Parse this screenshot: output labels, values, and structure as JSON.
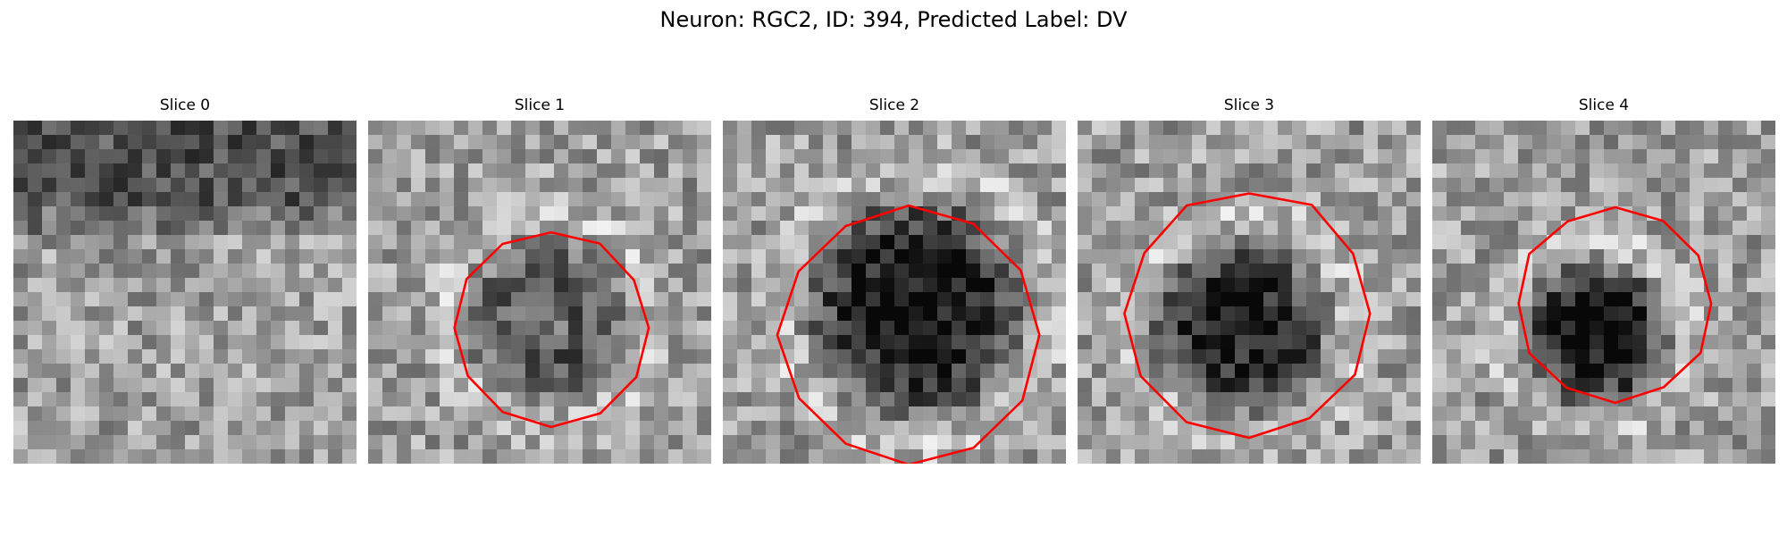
{
  "figure": {
    "title": "Neuron: RGC2, ID: 394, Predicted Label: DV"
  },
  "panels": [
    {
      "title": "Slice 0",
      "seed": 11,
      "cell": null,
      "contour": null
    },
    {
      "title": "Slice 1",
      "seed": 23,
      "cell": {
        "cx": 12.5,
        "cy": 14.0,
        "r": 6.5,
        "depth": 0.45,
        "hollow": 0.55
      },
      "contour": {
        "cx": 12.8,
        "cy": 14.5,
        "r": 6.8
      }
    },
    {
      "title": "Slice 2",
      "seed": 37,
      "cell": {
        "cx": 13.5,
        "cy": 13.0,
        "r": 8.5,
        "depth": 0.85,
        "hollow": 0.0
      },
      "contour": {
        "cx": 13.0,
        "cy": 15.0,
        "r": 9.0
      }
    },
    {
      "title": "Slice 3",
      "seed": 41,
      "cell": {
        "cx": 11.5,
        "cy": 14.5,
        "r": 7.0,
        "depth": 0.75,
        "hollow": 0.0
      },
      "contour": {
        "cx": 12.0,
        "cy": 13.5,
        "r": 8.6
      }
    },
    {
      "title": "Slice 4",
      "seed": 53,
      "cell": {
        "cx": 11.5,
        "cy": 15.0,
        "r": 5.8,
        "depth": 0.8,
        "hollow": 0.0
      },
      "contour": {
        "cx": 12.8,
        "cy": 12.8,
        "r": 6.8
      }
    }
  ],
  "colors": {
    "contour": "#ff0000",
    "background": "#ffffff"
  }
}
